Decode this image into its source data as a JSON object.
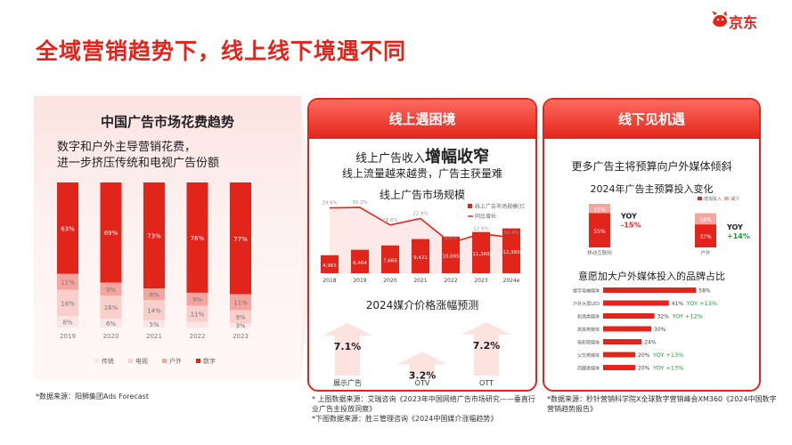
{
  "page": {
    "title": "全域营销趋势下，线上线下境遇不同",
    "logo_text": "京东"
  },
  "left": {
    "title": "中国广告市场花费趋势",
    "desc_line1": "数字和户外主导营销花费，",
    "desc_line2": "进一步挤压传统和电视广告份额",
    "source": "*数据来源：阳狮集团Ads Forecast"
  },
  "middle": {
    "header": "线上遇困境",
    "headline_prefix": "线上广告收入",
    "headline_bold": "增幅收窄",
    "subline": "线上流量越来越贵，广告主获量难",
    "chart_title": "线上广告市场规模",
    "price_title": "2024媒介价格涨幅预测",
    "source_line1": "* 上图数据来源：艾瑞咨询《2023年中国网络广告市场研究——垂直行",
    "source_line2": "业广告主投放洞察》",
    "source_line3": "*下图数据来源：胜三管理咨询《2024中国媒介涨幅趋势》"
  },
  "right": {
    "header": "线下见机遇",
    "headline": "更多广告主将预算向户外媒体倾斜",
    "budget_title": "2024年广告主预算投入变化",
    "brand_title": "意愿加大户外媒体投入的品牌占比",
    "source_line1": "*数据来源：秒针营销科学院X全球数字营销峰会XM360《2024中国数字",
    "source_line2": "营销趋势报告》"
  },
  "chart_data": [
    {
      "type": "bar",
      "stacked": true,
      "categories": [
        "2019",
        "2020",
        "2021",
        "2022",
        "2023"
      ],
      "series": [
        {
          "name": "传统",
          "values": [
            8,
            6,
            5,
            4,
            3
          ],
          "color": "#fbe5e3"
        },
        {
          "name": "电视",
          "values": [
            18,
            16,
            14,
            11,
            9
          ],
          "color": "#f9cfcb"
        },
        {
          "name": "户外",
          "values": [
            11,
            9,
            8,
            9,
            11
          ],
          "color": "#f6a59e"
        },
        {
          "name": "数字",
          "values": [
            63,
            69,
            73,
            76,
            77
          ],
          "color": "#e1251b"
        }
      ],
      "labels": [
        [
          "8%",
          "18%",
          "11%",
          "63%"
        ],
        [
          "6%",
          "16%",
          "9%",
          "69%"
        ],
        [
          "5%",
          "14%",
          "8%",
          "73%"
        ],
        [
          "",
          "11%",
          "9%",
          "76%"
        ],
        [
          "3%",
          "9%",
          "11%",
          "77%"
        ]
      ],
      "ylim": [
        0,
        100
      ],
      "legend": [
        "传统",
        "电视",
        "户外",
        "数字"
      ]
    },
    {
      "type": "bar",
      "categories": [
        "2018",
        "2019",
        "2020",
        "2021",
        "2022",
        "2023",
        "2024e"
      ],
      "series": [
        {
          "name": "线上广告市场规模(亿",
          "values": [
            4965,
            6464,
            7666,
            9421,
            10065,
            11369,
            12360
          ],
          "labels": [
            "4,965",
            "6,464",
            "7,666",
            "9,421",
            "10,065",
            "11,369",
            "12,360"
          ]
        },
        {
          "name": "同比增长",
          "values": [
            29.9,
            30.2,
            18.6,
            22.9,
            6.8,
            12.9,
            10.4
          ],
          "labels": [
            "29.9%",
            "30.2%",
            "18.6%",
            "22.9%",
            "6.8%",
            "12.9%",
            "10.4%"
          ]
        }
      ],
      "legend": [
        "线上广告市场规模(亿",
        "同比增长"
      ],
      "legend_position": "top-right"
    },
    {
      "type": "bar",
      "categories": [
        "展示广告",
        "OTV",
        "OTT"
      ],
      "values": [
        7.1,
        3.2,
        7.2
      ],
      "labels": [
        "7.1%",
        "3.2%",
        "7.2%"
      ]
    },
    {
      "type": "bar",
      "stacked": true,
      "categories": [
        "移动互联网",
        "户外"
      ],
      "series": [
        {
          "name": "增加投入",
          "values": [
            55,
            37
          ],
          "labels": [
            "55%",
            "37%"
          ]
        },
        {
          "name": "减少",
          "values": [
            15,
            18
          ],
          "labels": [
            "15%",
            "18%"
          ]
        }
      ],
      "yoy": [
        {
          "label": "YOY",
          "value": "-15%"
        },
        {
          "label": "YOY",
          "value": "+14%"
        }
      ],
      "legend": [
        "增加投入",
        "减少"
      ],
      "legend_position": "top-right"
    },
    {
      "type": "bar",
      "orientation": "horizontal",
      "categories": [
        "楼宇电梯媒体",
        "户外大屏LED",
        "机场类媒体",
        "高铁类媒体",
        "电影院媒体",
        "公交类媒体",
        "商圈类媒体"
      ],
      "values": [
        58,
        41,
        32,
        30,
        24,
        20,
        20
      ],
      "labels": [
        "58%",
        "41%",
        "32%",
        "30%",
        "24%",
        "20%",
        "20%"
      ],
      "yoy": [
        "",
        "YOY +13%",
        "YOY +12%",
        "",
        "",
        "YOY +13%",
        "YOY +13%"
      ],
      "xlim": [
        0,
        60
      ]
    }
  ]
}
